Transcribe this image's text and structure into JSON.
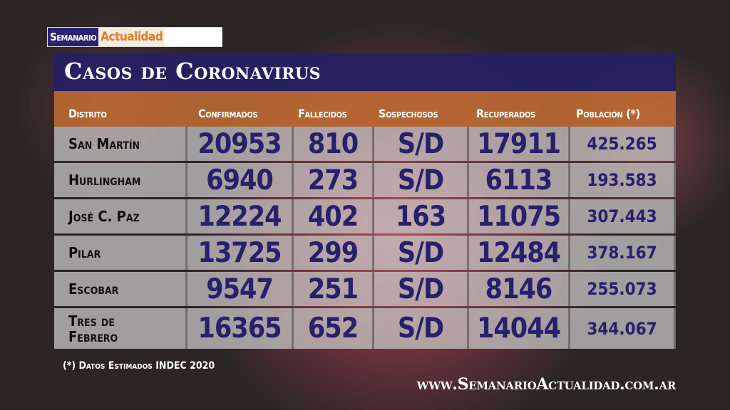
{
  "logo": {
    "part1": "Semanario",
    "part2": "Actualidad"
  },
  "title": "Casos de Coronavirus",
  "headers": [
    "Distrito",
    "Confirmados",
    "Fallecidos",
    "Sospechosos",
    "Recuperados",
    "Población (*)"
  ],
  "rows": [
    {
      "distrito": "San Martín",
      "confirmados": "20953",
      "fallecidos": "810",
      "sospechosos": "S/D",
      "recuperados": "17911",
      "poblacion": "425.265"
    },
    {
      "distrito": "Hurlingham",
      "confirmados": "6940",
      "fallecidos": "273",
      "sospechosos": "S/D",
      "recuperados": "6113",
      "poblacion": "193.583"
    },
    {
      "distrito": "José C. Paz",
      "confirmados": "12224",
      "fallecidos": "402",
      "sospechosos": "163",
      "recuperados": "11075",
      "poblacion": "307.443"
    },
    {
      "distrito": "Pilar",
      "confirmados": "13725",
      "fallecidos": "299",
      "sospechosos": "S/D",
      "recuperados": "12484",
      "poblacion": "378.167"
    },
    {
      "distrito": "Escobar",
      "confirmados": "9547",
      "fallecidos": "251",
      "sospechosos": "S/D",
      "recuperados": "8146",
      "poblacion": "255.073"
    },
    {
      "distrito": "Tres de Febrero",
      "confirmados": "16365",
      "fallecidos": "652",
      "sospechosos": "S/D",
      "recuperados": "14044",
      "poblacion": "344.067"
    }
  ],
  "footnote": "(*) Datos Estimados INDEC 2020",
  "url": "www.SemanarioActualidad.com.ar",
  "colors": {
    "navy": "#262064",
    "orange": "#c36e32",
    "number": "#27206b"
  }
}
